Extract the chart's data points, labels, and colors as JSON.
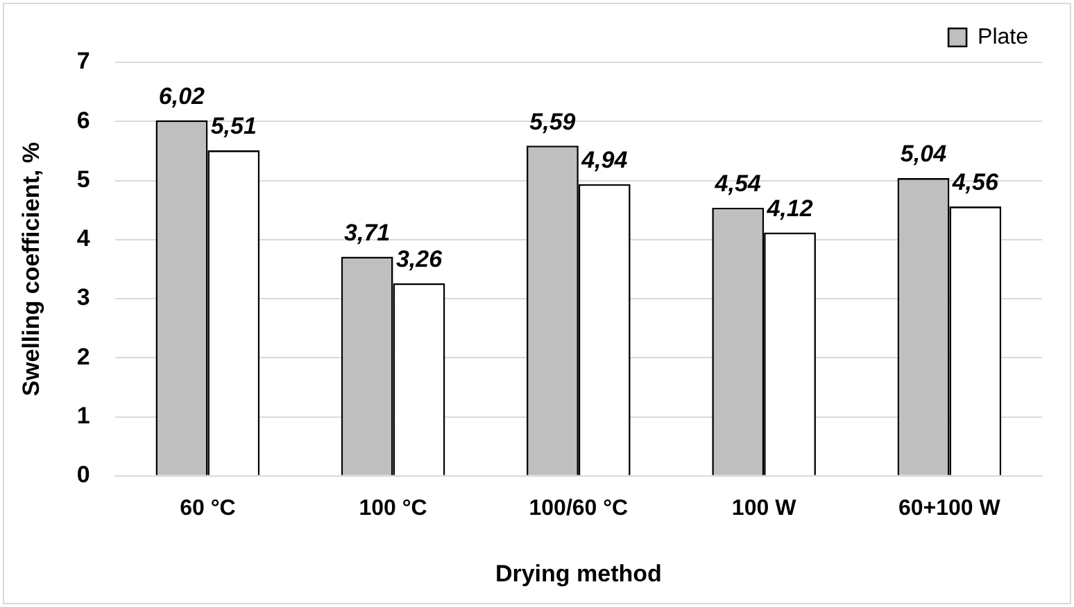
{
  "chart_data": {
    "type": "bar",
    "xlabel": "Drying method",
    "ylabel": "Swelling coefficient, %",
    "categories": [
      "60 °C",
      "100 °C",
      "100/60 °C",
      "100 W",
      "60+100 W"
    ],
    "series": [
      {
        "name": "Plate",
        "color": "#bfbfbf",
        "values": [
          6.02,
          3.71,
          5.59,
          4.54,
          5.04
        ],
        "value_labels": [
          "6,02",
          "3,71",
          "5,59",
          "4,54",
          "5,04"
        ]
      },
      {
        "color": "#ffffff",
        "values": [
          5.51,
          3.26,
          4.94,
          4.12,
          4.56
        ],
        "value_labels": [
          "5,51",
          "3,26",
          "4,94",
          "4,12",
          "4,56"
        ]
      }
    ],
    "ylim": [
      0,
      7
    ],
    "yticks": [
      0,
      1,
      2,
      3,
      4,
      5,
      6,
      7
    ],
    "grid": "y",
    "legend": "top right"
  }
}
